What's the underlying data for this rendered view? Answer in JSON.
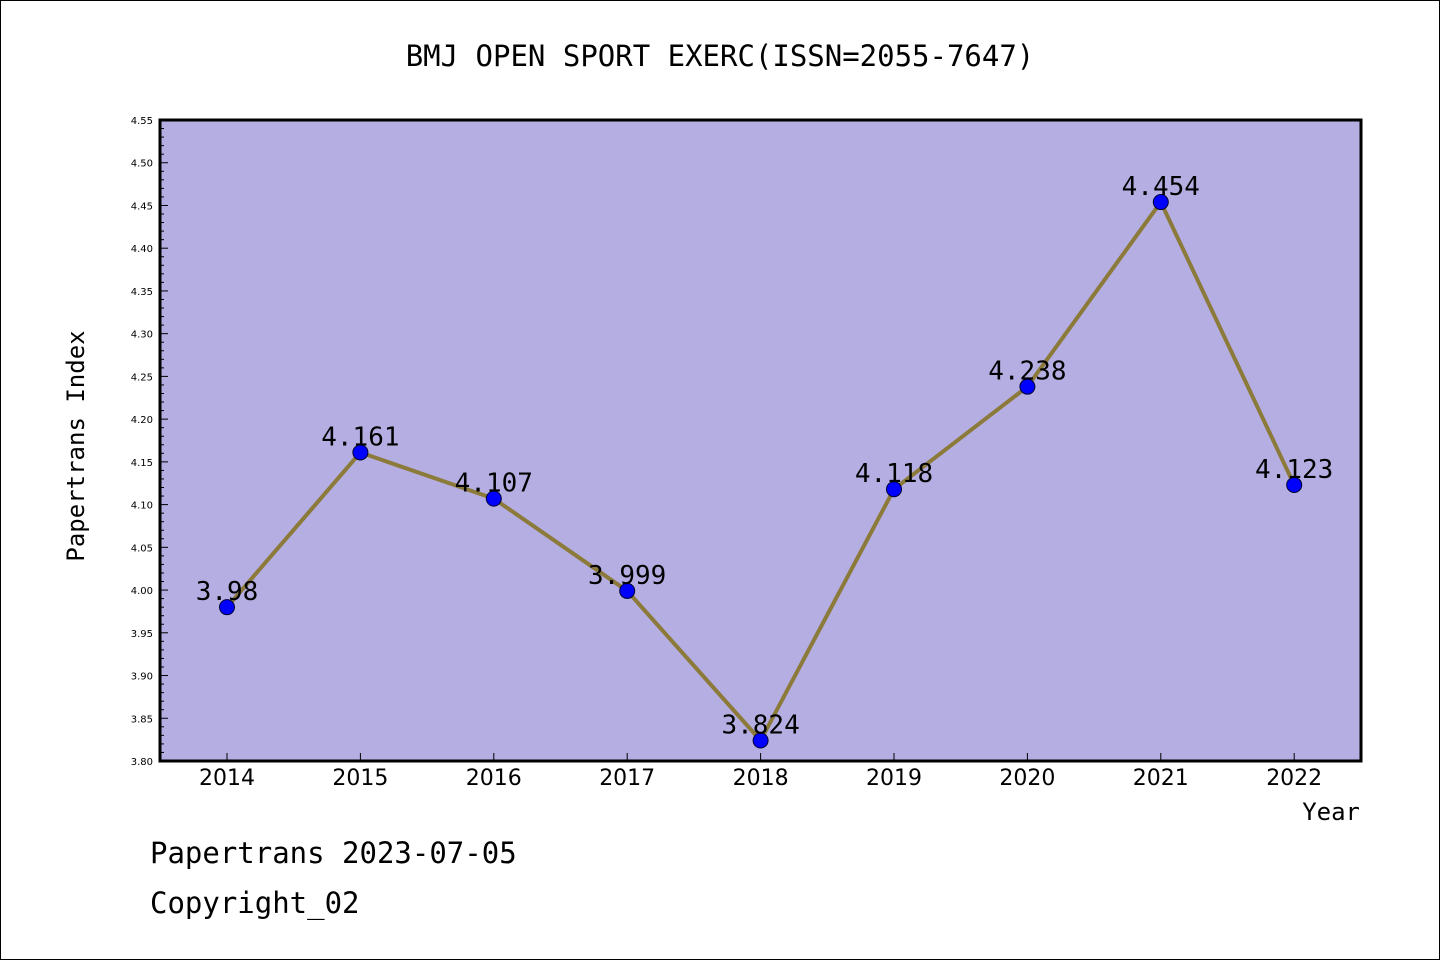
{
  "footer": {
    "line1": "Papertrans 2023-07-05",
    "line2": "Copyright_02"
  },
  "colors": {
    "plot_background": "#b5aee2",
    "line": "#8b7a3a",
    "marker": "#0000ff",
    "axis": "#000000"
  },
  "chart_data": {
    "type": "line",
    "title": "BMJ OPEN SPORT EXERC(ISSN=2055-7647)",
    "xlabel": "Year",
    "ylabel": "Papertrans Index",
    "ylim": [
      3.8,
      4.55
    ],
    "yticks": [
      "3.80",
      "3.85",
      "3.90",
      "3.95",
      "4.00",
      "4.05",
      "4.10",
      "4.15",
      "4.20",
      "4.25",
      "4.30",
      "4.35",
      "4.40",
      "4.45",
      "4.50",
      "4.55"
    ],
    "grid": false,
    "categories": [
      "2014",
      "2015",
      "2016",
      "2017",
      "2018",
      "2019",
      "2020",
      "2021",
      "2022"
    ],
    "values": [
      3.98,
      4.161,
      4.107,
      3.999,
      3.824,
      4.118,
      4.238,
      4.454,
      4.123
    ],
    "data_labels": [
      "3.98",
      "4.161",
      "4.107",
      "3.999",
      "3.824",
      "4.118",
      "4.238",
      "4.454",
      "4.123"
    ]
  }
}
